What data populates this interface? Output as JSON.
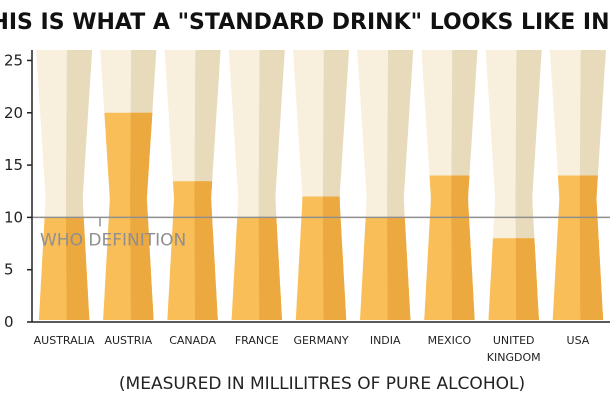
{
  "title": "THIS IS WHAT A \"STANDARD DRINK\" LOOKS LIKE IN...",
  "subtitle": "(MEASURED IN MILLILITRES OF PURE ALCOHOL)",
  "colors": {
    "glass_light": "#f8f0dc",
    "glass_shade": "#e4d8b8",
    "beer_light": "#f9be57",
    "beer_shade": "#eca93f",
    "reference_line": "#8f8f8f",
    "axis": "#222222"
  },
  "chart_data": {
    "type": "bar",
    "title": "THIS IS WHAT A \"STANDARD DRINK\" LOOKS LIKE IN...",
    "xlabel": "(MEASURED IN MILLILITRES OF PURE ALCOHOL)",
    "ylabel": "",
    "categories": [
      [
        "AUSTRALIA"
      ],
      [
        "AUSTRIA"
      ],
      [
        "CANADA"
      ],
      [
        "FRANCE"
      ],
      [
        "GERMANY"
      ],
      [
        "INDIA"
      ],
      [
        "MEXICO"
      ],
      [
        "UNITED",
        "KINGDOM"
      ],
      [
        "USA"
      ]
    ],
    "values": [
      10,
      20,
      13.45,
      10,
      12,
      10,
      14,
      8,
      14
    ],
    "ylim": [
      0,
      26
    ],
    "yticks": [
      0,
      5,
      10,
      15,
      20,
      25
    ],
    "glass_capacity": 26,
    "grid": false,
    "reference": {
      "value": 10,
      "label": "WHO DEFINITION"
    }
  }
}
